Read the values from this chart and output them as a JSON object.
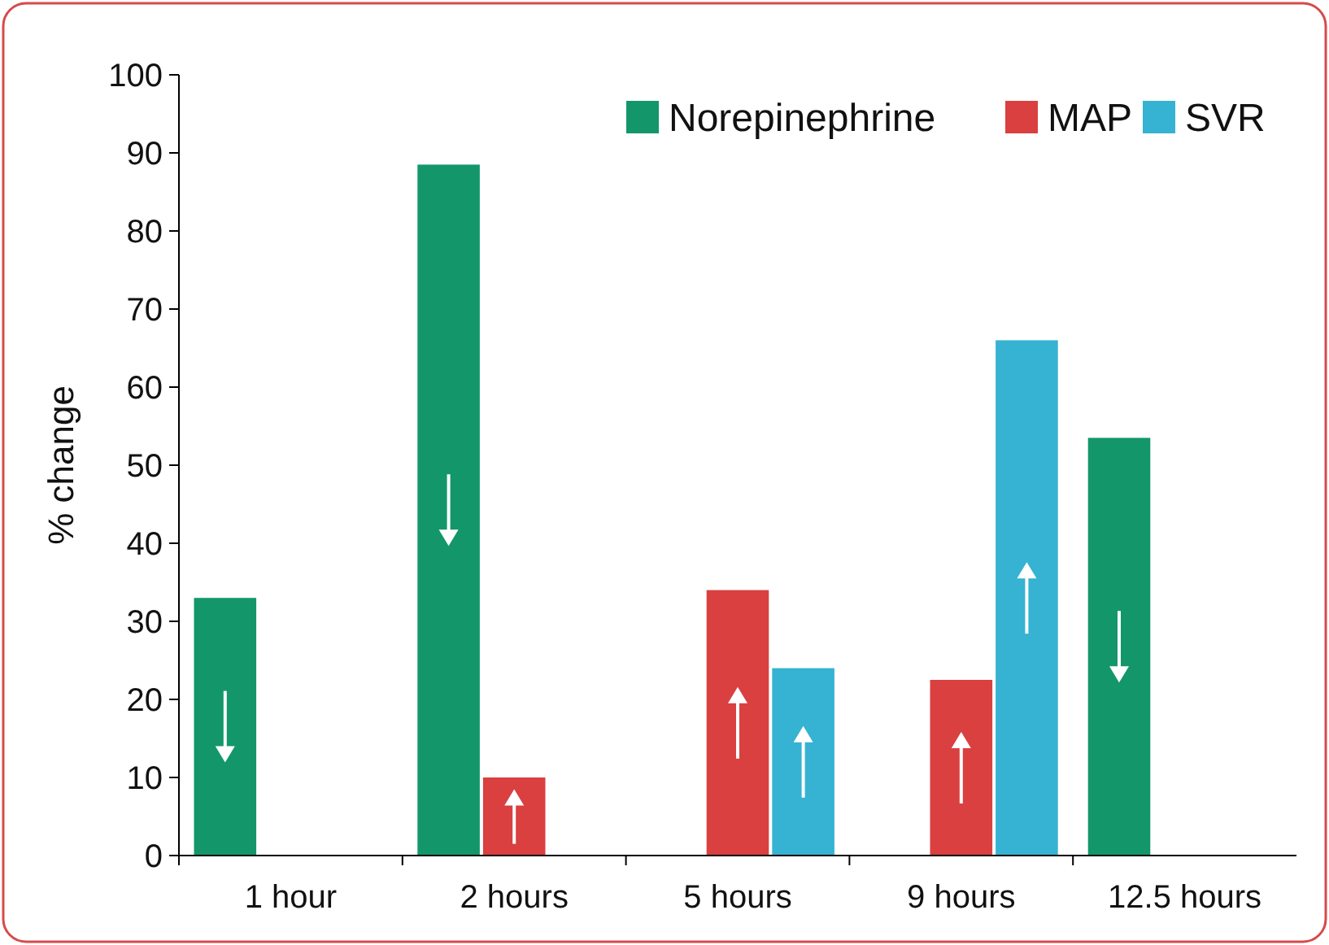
{
  "chart_data": {
    "type": "bar",
    "ylabel": "% change",
    "categories": [
      "1 hour",
      "2 hours",
      "5 hours",
      "9 hours",
      "12.5 hours"
    ],
    "series": [
      {
        "name": "Norepinephrine",
        "color": "#13976a",
        "values": [
          33,
          88.5,
          null,
          null,
          53.5
        ]
      },
      {
        "name": "MAP",
        "color": "#d9403f",
        "values": [
          null,
          10,
          34,
          22.5,
          null
        ]
      },
      {
        "name": "SVR",
        "color": "#36b2d2",
        "values": [
          null,
          null,
          24,
          66,
          null
        ]
      }
    ],
    "ylim": [
      0,
      100
    ],
    "yticks": [
      0,
      10,
      20,
      30,
      40,
      50,
      60,
      70,
      80,
      90,
      100
    ],
    "grid": false,
    "legend": "top right"
  }
}
